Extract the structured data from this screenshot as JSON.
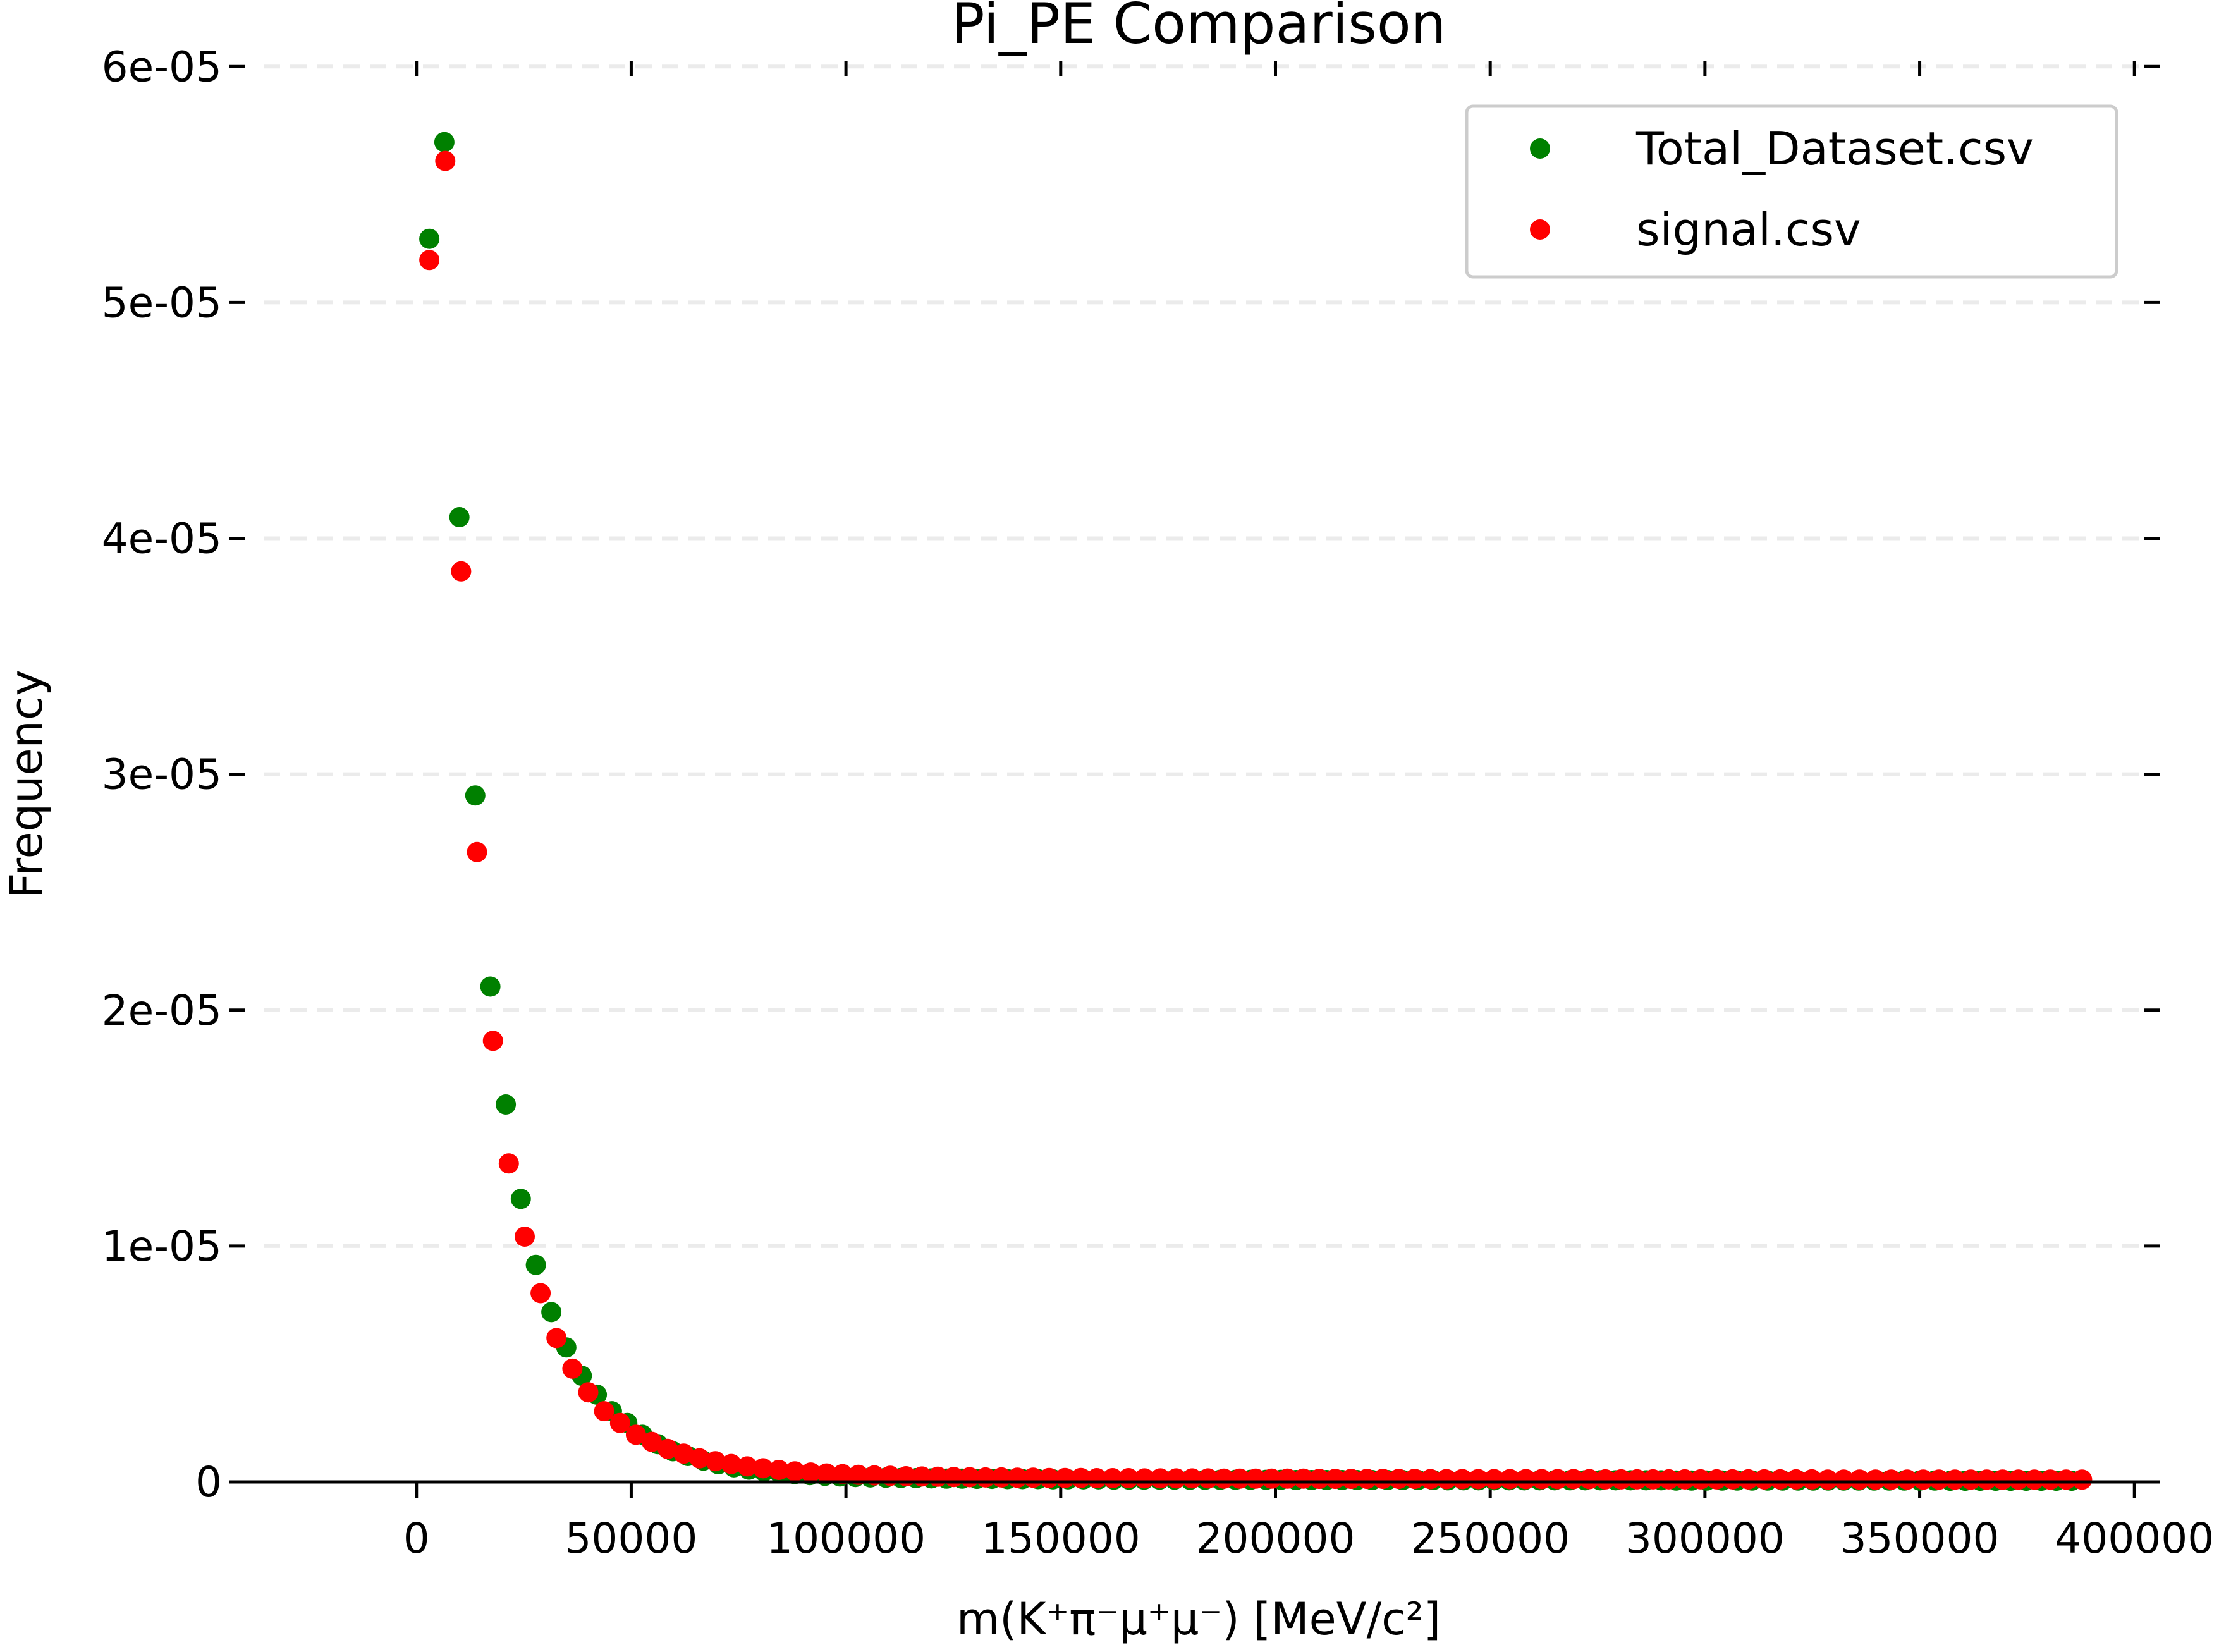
{
  "chart_data": {
    "type": "scatter",
    "title": "Pi_PE Comparison",
    "xlabel": "m(K⁺π⁻μ⁺μ⁻) [MeV/c²]",
    "ylabel": "Frequency",
    "xlim": [
      -40000,
      406000
    ],
    "ylim": [
      0,
      6.1e-05
    ],
    "grid": "horizontal dashed",
    "legend_position": "top-right",
    "xticks": [
      0,
      50000,
      100000,
      150000,
      200000,
      250000,
      300000,
      350000,
      400000
    ],
    "xtick_labels": [
      "0",
      "50000",
      "100000",
      "150000",
      "200000",
      "250000",
      "300000",
      "350000",
      "400000"
    ],
    "yticks": [
      0,
      1e-05,
      2e-05,
      3e-05,
      4e-05,
      5e-05,
      6e-05
    ],
    "ytick_labels": [
      "0",
      "1e-05",
      "2e-05",
      "3e-05",
      "4e-05",
      "5e-05",
      "6e-05"
    ],
    "series": [
      {
        "name": "Total_Dataset.csv",
        "color": "#008000",
        "x": [
          3000,
          6500,
          10000,
          13700,
          17200,
          20800,
          24300,
          27800,
          31400,
          34900,
          38500,
          42000,
          45500,
          49100,
          52600,
          56200,
          59700,
          63200,
          66800,
          70300,
          73900,
          77400,
          80900,
          84500,
          88000,
          91600,
          95100,
          98600,
          102200,
          105700,
          109300,
          112800,
          116300,
          119900,
          123400,
          127000,
          130500,
          134000,
          137600,
          141100,
          144700,
          148200,
          151700,
          155300,
          158800,
          162400,
          165900,
          169400,
          173000,
          176500,
          180100,
          183600,
          187100,
          190700,
          194200,
          197800,
          201300,
          204800,
          208400,
          211900,
          215500,
          219000,
          222500,
          226100,
          229600,
          233200,
          236700,
          240200,
          243800,
          247300,
          250900,
          254400,
          257900,
          261500,
          265000,
          268600,
          272100,
          275600,
          279200,
          282700,
          286300,
          289800,
          293300,
          296900,
          300400,
          304000,
          307500,
          311000,
          314600,
          318100,
          321700,
          325200,
          328700,
          332300,
          335800,
          339400,
          342900,
          346400,
          350000,
          353500,
          357100,
          360600,
          364100,
          367700,
          371200,
          374800,
          378300,
          381800,
          385400
        ],
        "y": [
          5.27e-05,
          5.68e-05,
          4.09e-05,
          2.91e-05,
          2.1e-05,
          1.6e-05,
          1.2e-05,
          9.2e-06,
          7.2e-06,
          5.7e-06,
          4.5e-06,
          3.7e-06,
          3e-06,
          2.5e-06,
          2e-06,
          1.6e-06,
          1.3e-06,
          1.1e-06,
          9e-07,
          7.5e-07,
          6.2e-07,
          5.2e-07,
          4.4e-07,
          3.8e-07,
          3.3e-07,
          2.9e-07,
          2.6e-07,
          2.3e-07,
          2.1e-07,
          1.9e-07,
          1.8e-07,
          1.7e-07,
          1.6e-07,
          1.5e-07,
          1.4e-07,
          1.4e-07,
          1.3e-07,
          1.3e-07,
          1.2e-07,
          1.2e-07,
          1.2e-07,
          1.1e-07,
          1.1e-07,
          1.1e-07,
          1.1e-07,
          1e-07,
          1e-07,
          1e-07,
          1e-07,
          1e-07,
          9e-08,
          9e-08,
          9e-08,
          9e-08,
          9e-08,
          9e-08,
          9e-08,
          8e-08,
          8e-08,
          8e-08,
          8e-08,
          8e-08,
          8e-08,
          8e-08,
          8e-08,
          8e-08,
          8e-08,
          7e-08,
          7e-08,
          7e-08,
          7e-08,
          7e-08,
          7e-08,
          7e-08,
          7e-08,
          7e-08,
          7e-08,
          7e-08,
          7e-08,
          7e-08,
          7e-08,
          7e-08,
          6e-08,
          6e-08,
          6e-08,
          6e-08,
          6e-08,
          6e-08,
          6e-08,
          6e-08,
          6e-08,
          6e-08,
          6e-08,
          6e-08,
          6e-08,
          6e-08,
          6e-08,
          6e-08,
          6e-08,
          6e-08,
          5e-08,
          5e-08,
          5e-08,
          5e-08,
          5e-08,
          5e-08,
          5e-08,
          5e-08,
          5e-08
        ]
      },
      {
        "name": "signal.csv",
        "color": "#ff0000",
        "x": [
          3000,
          6700,
          10400,
          14100,
          17800,
          21500,
          25200,
          28900,
          32600,
          36300,
          40000,
          43700,
          47400,
          51100,
          54800,
          58500,
          62200,
          65900,
          69600,
          73300,
          77000,
          80700,
          84400,
          88100,
          91800,
          95500,
          99200,
          102900,
          106600,
          110300,
          114000,
          117700,
          121400,
          125100,
          128800,
          132500,
          136200,
          139900,
          143600,
          147300,
          151000,
          154700,
          158400,
          162100,
          165800,
          169500,
          173200,
          176900,
          180600,
          184300,
          188000,
          191700,
          195400,
          199100,
          202800,
          206500,
          210200,
          213900,
          217600,
          221300,
          225000,
          228700,
          232400,
          236100,
          239800,
          243500,
          247200,
          250900,
          254600,
          258300,
          262000,
          265700,
          269400,
          273100,
          276800,
          280500,
          284200,
          287900,
          291600,
          295300,
          299000,
          302700,
          306400,
          310100,
          313800,
          317500,
          321200,
          324900,
          328600,
          332300,
          336000,
          339700,
          343400,
          347100,
          350800,
          354500,
          358200,
          361900,
          365600,
          369300,
          373000,
          376700,
          380400,
          384100,
          387800
        ],
        "y": [
          5.18e-05,
          5.6e-05,
          3.86e-05,
          2.67e-05,
          1.87e-05,
          1.35e-05,
          1.04e-05,
          8e-06,
          6.1e-06,
          4.8e-06,
          3.8e-06,
          3e-06,
          2.5e-06,
          2e-06,
          1.7e-06,
          1.4e-06,
          1.2e-06,
          1e-06,
          8.8e-07,
          7.6e-07,
          6.6e-07,
          5.8e-07,
          5.1e-07,
          4.5e-07,
          4e-07,
          3.6e-07,
          3.3e-07,
          3e-07,
          2.8e-07,
          2.6e-07,
          2.4e-07,
          2.3e-07,
          2.2e-07,
          2.1e-07,
          2e-07,
          1.9e-07,
          1.9e-07,
          1.8e-07,
          1.8e-07,
          1.7e-07,
          1.7e-07,
          1.7e-07,
          1.6e-07,
          1.6e-07,
          1.6e-07,
          1.5e-07,
          1.5e-07,
          1.5e-07,
          1.5e-07,
          1.5e-07,
          1.4e-07,
          1.4e-07,
          1.4e-07,
          1.4e-07,
          1.4e-07,
          1.4e-07,
          1.3e-07,
          1.3e-07,
          1.3e-07,
          1.3e-07,
          1.3e-07,
          1.3e-07,
          1.3e-07,
          1.2e-07,
          1.2e-07,
          1.2e-07,
          1.2e-07,
          1.2e-07,
          1.2e-07,
          1.2e-07,
          1.2e-07,
          1.2e-07,
          1.2e-07,
          1.2e-07,
          1.1e-07,
          1.1e-07,
          1.1e-07,
          1.1e-07,
          1.1e-07,
          1.1e-07,
          1.1e-07,
          1.1e-07,
          1.1e-07,
          1.1e-07,
          1.1e-07,
          1.1e-07,
          1.1e-07,
          1.1e-07,
          1e-07,
          1e-07,
          1e-07,
          1e-07,
          1e-07,
          1e-07,
          1e-07,
          1e-07,
          1e-07,
          1e-07,
          1e-07,
          1e-07,
          1e-07,
          1e-07,
          1e-07,
          1e-07,
          1e-07
        ]
      }
    ]
  }
}
